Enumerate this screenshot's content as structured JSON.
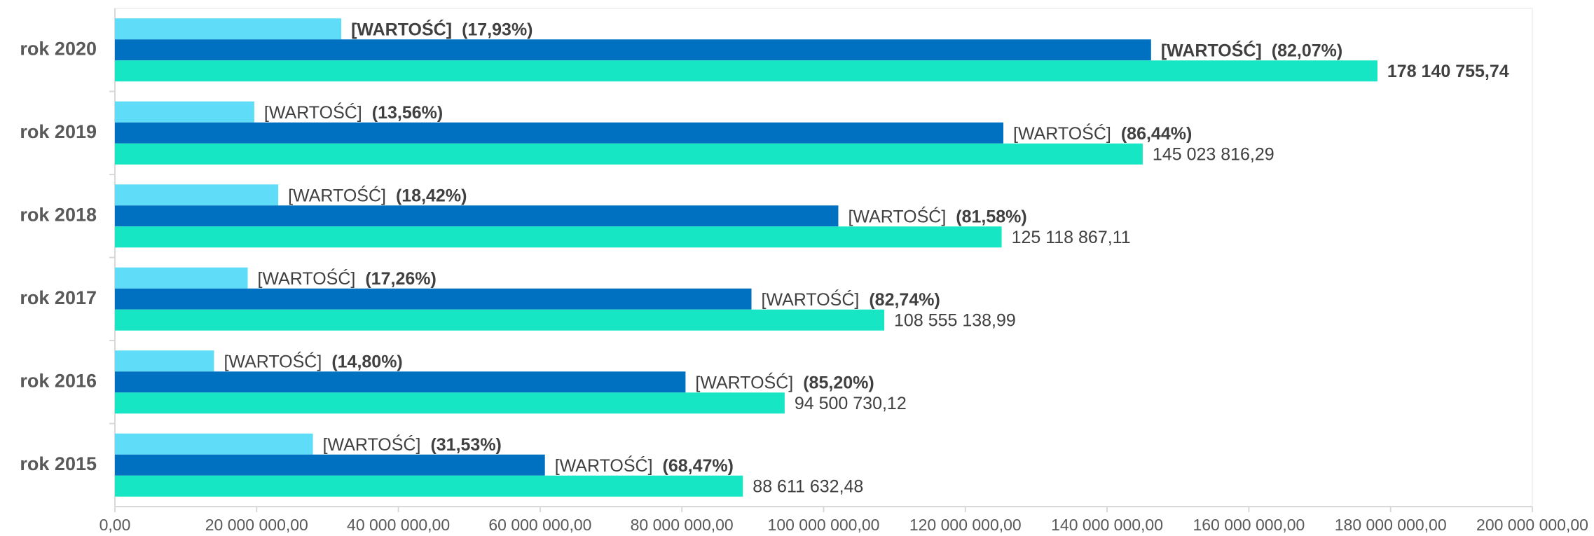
{
  "chart_data": {
    "type": "hbar",
    "categories": [
      "rok 2020",
      "rok 2019",
      "rok 2018",
      "rok 2017",
      "rok 2016",
      "rok 2015"
    ],
    "series": [
      {
        "color": "#5fdcf7",
        "values": [
          31940638,
          19665230,
          23046895,
          18736617,
          13986108,
          27939248
        ],
        "label_texts": [
          "[WARTOŚĆ]",
          "[WARTOŚĆ]",
          "[WARTOŚĆ]",
          "[WARTOŚĆ]",
          "[WARTOŚĆ]",
          "[WARTOŚĆ]"
        ],
        "share_labels": [
          "(17,93%)",
          "(13,56%)",
          "(18,42%)",
          "(17,26%)",
          "(14,80%)",
          "(31,53%)"
        ]
      },
      {
        "color": "#0070c0",
        "values": [
          146200118,
          125358587,
          102071972,
          89818522,
          80514622,
          60672385
        ],
        "label_texts": [
          "[WARTOŚĆ]",
          "[WARTOŚĆ]",
          "[WARTOŚĆ]",
          "[WARTOŚĆ]",
          "[WARTOŚĆ]",
          "[WARTOŚĆ]"
        ],
        "share_labels": [
          "(82,07%)",
          "(86,44%)",
          "(81,58%)",
          "(82,74%)",
          "(85,20%)",
          "(68,47%)"
        ]
      },
      {
        "color": "#16e6c4",
        "values": [
          178140755.74,
          145023816.29,
          125118867.11,
          108555138.99,
          94500730.12,
          88611632.48
        ],
        "value_labels": [
          "178 140 755,74",
          "145 023 816,29",
          "125 118 867,11",
          "108 555 138,99",
          "94 500 730,12",
          "88 611 632,48"
        ]
      }
    ],
    "xlim": [
      0,
      200000000
    ],
    "xticks": [
      {
        "value": 0,
        "label": "0,00"
      },
      {
        "value": 20000000,
        "label": "20 000 000,00"
      },
      {
        "value": 40000000,
        "label": "40 000 000,00"
      },
      {
        "value": 60000000,
        "label": "60 000 000,00"
      },
      {
        "value": 80000000,
        "label": "80 000 000,00"
      },
      {
        "value": 100000000,
        "label": "100 000 000,00"
      },
      {
        "value": 120000000,
        "label": "120 000 000,00"
      },
      {
        "value": 140000000,
        "label": "140 000 000,00"
      },
      {
        "value": 160000000,
        "label": "160 000 000,00"
      },
      {
        "value": 180000000,
        "label": "180 000 000,00"
      },
      {
        "value": 200000000,
        "label": "200 000 000,00"
      }
    ]
  }
}
